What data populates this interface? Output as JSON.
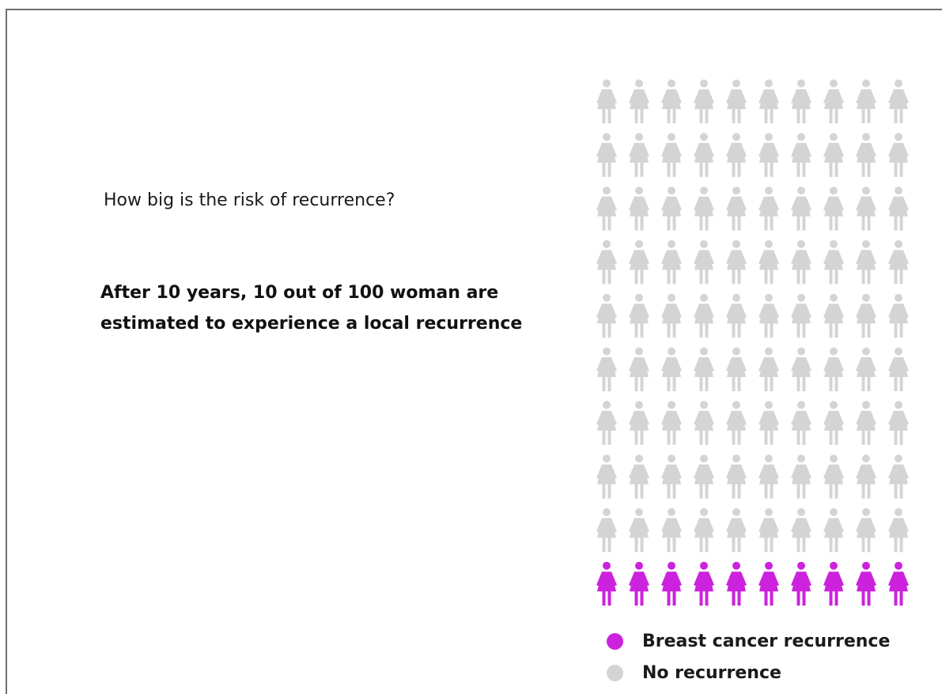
{
  "question": "How big is the risk of recurrence?",
  "statement": "After 10 years, 10 out of 100 woman are estimated to experience a local recurrence",
  "chart_data": {
    "type": "icon-array",
    "total": 100,
    "columns": 10,
    "rows": 10,
    "icon": "woman-icon",
    "series": [
      {
        "name": "Breast cancer recurrence",
        "count": 10,
        "color": "#cc22dd"
      },
      {
        "name": "No recurrence",
        "count": 90,
        "color": "#d4d4d4"
      }
    ],
    "highlighted_row": "bottom"
  },
  "legend": {
    "items": [
      {
        "label": "Breast cancer recurrence",
        "color": "#cc22dd"
      },
      {
        "label": "No recurrence",
        "color": "#d4d4d4"
      }
    ]
  }
}
